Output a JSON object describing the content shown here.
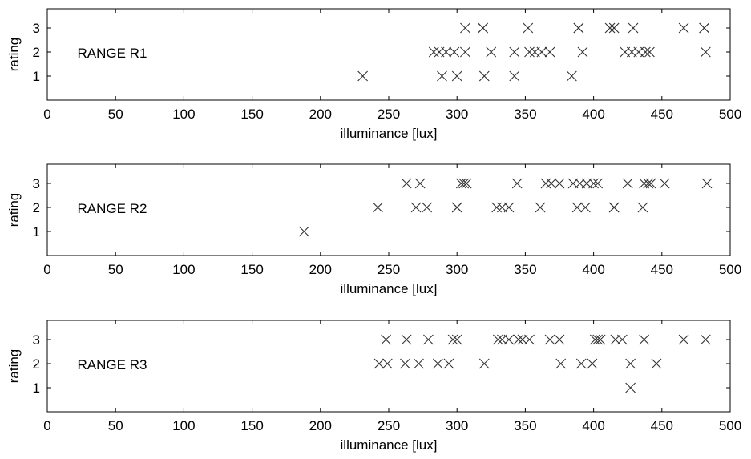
{
  "chart_data": [
    {
      "type": "scatter",
      "annotation": "RANGE R1",
      "xlabel": "illuminance [lux]",
      "ylabel": "rating",
      "xlim": [
        0,
        500
      ],
      "ylim": [
        0,
        3.8
      ],
      "xticks": [
        0,
        50,
        100,
        150,
        200,
        250,
        300,
        350,
        400,
        450,
        500
      ],
      "yticks": [
        1,
        2,
        3
      ],
      "marker": "x",
      "series": [
        {
          "points": [
            [
              231,
              1
            ],
            [
              289,
              1
            ],
            [
              300,
              1
            ],
            [
              320,
              1
            ],
            [
              342,
              1
            ],
            [
              384,
              1
            ],
            [
              283,
              2
            ],
            [
              287,
              2
            ],
            [
              292,
              2
            ],
            [
              298,
              2
            ],
            [
              306,
              2
            ],
            [
              325,
              2
            ],
            [
              342,
              2
            ],
            [
              353,
              2
            ],
            [
              357,
              2
            ],
            [
              362,
              2
            ],
            [
              368,
              2
            ],
            [
              392,
              2
            ],
            [
              423,
              2
            ],
            [
              428,
              2
            ],
            [
              433,
              2
            ],
            [
              438,
              2
            ],
            [
              441,
              2
            ],
            [
              482,
              2
            ],
            [
              306,
              3
            ],
            [
              319,
              3
            ],
            [
              319,
              3
            ],
            [
              352,
              3
            ],
            [
              389,
              3
            ],
            [
              389,
              3
            ],
            [
              412,
              3
            ],
            [
              415,
              3
            ],
            [
              429,
              3
            ],
            [
              466,
              3
            ],
            [
              481,
              3
            ],
            [
              481,
              3
            ]
          ]
        }
      ]
    },
    {
      "type": "scatter",
      "annotation": "RANGE R2",
      "xlabel": "illuminance [lux]",
      "ylabel": "rating",
      "xlim": [
        0,
        500
      ],
      "ylim": [
        0,
        3.8
      ],
      "xticks": [
        0,
        50,
        100,
        150,
        200,
        250,
        300,
        350,
        400,
        450,
        500
      ],
      "yticks": [
        1,
        2,
        3
      ],
      "marker": "x",
      "series": [
        {
          "points": [
            [
              188,
              1
            ],
            [
              242,
              2
            ],
            [
              270,
              2
            ],
            [
              278,
              2
            ],
            [
              300,
              2
            ],
            [
              300,
              2
            ],
            [
              329,
              2
            ],
            [
              333,
              2
            ],
            [
              338,
              2
            ],
            [
              361,
              2
            ],
            [
              388,
              2
            ],
            [
              394,
              2
            ],
            [
              415,
              2
            ],
            [
              415,
              2
            ],
            [
              436,
              2
            ],
            [
              263,
              3
            ],
            [
              273,
              3
            ],
            [
              303,
              3
            ],
            [
              305,
              3
            ],
            [
              307,
              3
            ],
            [
              344,
              3
            ],
            [
              365,
              3
            ],
            [
              369,
              3
            ],
            [
              375,
              3
            ],
            [
              385,
              3
            ],
            [
              390,
              3
            ],
            [
              395,
              3
            ],
            [
              400,
              3
            ],
            [
              403,
              3
            ],
            [
              425,
              3
            ],
            [
              437,
              3
            ],
            [
              440,
              3
            ],
            [
              442,
              3
            ],
            [
              452,
              3
            ],
            [
              483,
              3
            ]
          ]
        }
      ]
    },
    {
      "type": "scatter",
      "annotation": "RANGE R3",
      "xlabel": "illuminance [lux]",
      "ylabel": "rating",
      "xlim": [
        0,
        500
      ],
      "ylim": [
        0,
        3.8
      ],
      "xticks": [
        0,
        50,
        100,
        150,
        200,
        250,
        300,
        350,
        400,
        450,
        500
      ],
      "yticks": [
        1,
        2,
        3
      ],
      "marker": "x",
      "series": [
        {
          "points": [
            [
              427,
              1
            ],
            [
              243,
              2
            ],
            [
              249,
              2
            ],
            [
              262,
              2
            ],
            [
              272,
              2
            ],
            [
              286,
              2
            ],
            [
              294,
              2
            ],
            [
              320,
              2
            ],
            [
              376,
              2
            ],
            [
              391,
              2
            ],
            [
              399,
              2
            ],
            [
              427,
              2
            ],
            [
              446,
              2
            ],
            [
              248,
              3
            ],
            [
              263,
              3
            ],
            [
              279,
              3
            ],
            [
              297,
              3
            ],
            [
              300,
              3
            ],
            [
              330,
              3
            ],
            [
              333,
              3
            ],
            [
              338,
              3
            ],
            [
              345,
              3
            ],
            [
              348,
              3
            ],
            [
              353,
              3
            ],
            [
              368,
              3
            ],
            [
              375,
              3
            ],
            [
              401,
              3
            ],
            [
              403,
              3
            ],
            [
              405,
              3
            ],
            [
              416,
              3
            ],
            [
              421,
              3
            ],
            [
              437,
              3
            ],
            [
              466,
              3
            ],
            [
              482,
              3
            ]
          ]
        }
      ]
    }
  ]
}
